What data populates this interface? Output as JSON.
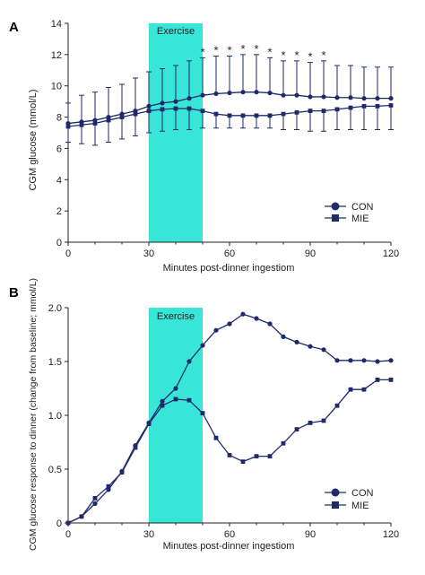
{
  "colors": {
    "line": "#1f2a6b",
    "band": "#38e6d8",
    "axis": "#222222"
  },
  "chart_data": [
    {
      "panel_label": "A",
      "type": "line",
      "ylabel": "CGM glucose (mmol/L)",
      "xlabel": "Minutes post-dinner ingestiom",
      "xlim": [
        0,
        120
      ],
      "ylim": [
        0,
        14
      ],
      "x_ticks": [
        "0",
        "30",
        "60",
        "90",
        "120"
      ],
      "y_ticks": [
        "0",
        "2",
        "4",
        "6",
        "8",
        "10",
        "12",
        "14"
      ],
      "band": {
        "label": "Exercise",
        "x_start": 30,
        "x_end": 50
      },
      "legend": {
        "position": "bottom-right"
      },
      "x": [
        0,
        5,
        10,
        15,
        20,
        25,
        30,
        35,
        40,
        45,
        50,
        55,
        60,
        65,
        70,
        75,
        80,
        85,
        90,
        95,
        100,
        105,
        110,
        115,
        120
      ],
      "series": [
        {
          "name": "CON",
          "marker": "circle",
          "values": [
            7.6,
            7.7,
            7.8,
            8.0,
            8.2,
            8.4,
            8.7,
            8.9,
            9.0,
            9.2,
            9.4,
            9.5,
            9.55,
            9.6,
            9.6,
            9.55,
            9.4,
            9.4,
            9.3,
            9.3,
            9.25,
            9.25,
            9.2,
            9.2,
            9.2
          ],
          "sd_upper": [
            8.9,
            9.4,
            9.6,
            9.9,
            10.1,
            10.5,
            10.9,
            11.1,
            11.3,
            11.6,
            11.8,
            11.9,
            11.9,
            12.0,
            12.0,
            11.8,
            11.6,
            11.6,
            11.5,
            11.6,
            11.3,
            11.3,
            11.2,
            11.2,
            11.2
          ],
          "significance_x": [
            50,
            55,
            60,
            65,
            70,
            75,
            80,
            85,
            90,
            95
          ]
        },
        {
          "name": "MIE",
          "marker": "square",
          "values": [
            7.4,
            7.5,
            7.6,
            7.8,
            8.0,
            8.2,
            8.4,
            8.5,
            8.55,
            8.55,
            8.4,
            8.2,
            8.1,
            8.1,
            8.1,
            8.1,
            8.2,
            8.3,
            8.4,
            8.4,
            8.5,
            8.6,
            8.7,
            8.7,
            8.75
          ],
          "sd_lower": [
            6.4,
            6.3,
            6.2,
            6.4,
            6.6,
            6.8,
            7.0,
            7.1,
            7.2,
            7.2,
            7.3,
            7.3,
            7.3,
            7.3,
            7.3,
            7.3,
            7.2,
            7.2,
            7.1,
            7.1,
            7.2,
            7.2,
            7.2,
            7.2,
            7.2
          ]
        }
      ],
      "significance_symbol": "*"
    },
    {
      "panel_label": "B",
      "type": "line",
      "ylabel": "CGM glucose response to dinner (change from baseline; mmol/L)",
      "xlabel": "Minutes post-dinner ingestiom",
      "xlim": [
        0,
        120
      ],
      "ylim": [
        0,
        2.0
      ],
      "x_ticks": [
        "0",
        "30",
        "60",
        "90",
        "120"
      ],
      "y_ticks": [
        "0",
        "0.5",
        "1.0",
        "1.5",
        "2.0"
      ],
      "band": {
        "label": "Exercise",
        "x_start": 30,
        "x_end": 50
      },
      "legend": {
        "position": "bottom-right"
      },
      "x": [
        0,
        5,
        10,
        15,
        20,
        25,
        30,
        35,
        40,
        45,
        50,
        55,
        60,
        65,
        70,
        75,
        80,
        85,
        90,
        95,
        100,
        105,
        110,
        115,
        120
      ],
      "series": [
        {
          "name": "CON",
          "marker": "circle",
          "values": [
            0,
            0.06,
            0.18,
            0.31,
            0.48,
            0.72,
            0.93,
            1.13,
            1.25,
            1.5,
            1.65,
            1.79,
            1.85,
            1.94,
            1.9,
            1.85,
            1.73,
            1.68,
            1.64,
            1.61,
            1.51,
            1.51,
            1.51,
            1.5,
            1.51
          ]
        },
        {
          "name": "MIE",
          "marker": "square",
          "values": [
            0,
            0.06,
            0.23,
            0.34,
            0.47,
            0.7,
            0.92,
            1.09,
            1.15,
            1.14,
            1.02,
            0.79,
            0.63,
            0.57,
            0.62,
            0.62,
            0.74,
            0.87,
            0.93,
            0.95,
            1.09,
            1.24,
            1.24,
            1.33,
            1.33
          ]
        }
      ]
    }
  ]
}
